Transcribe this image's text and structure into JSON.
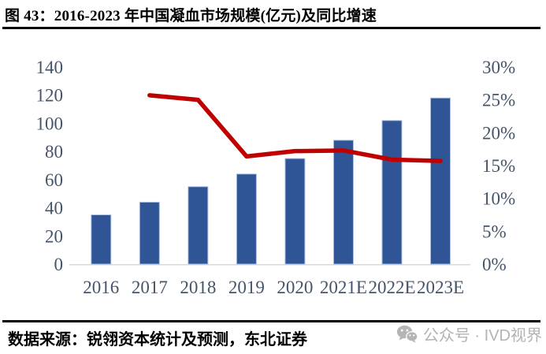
{
  "header": {
    "title": "图 43：2016-2023 年中国凝血市场规模(亿元)及同比增速"
  },
  "footer": {
    "source": "数据来源：锐翎资本统计及预测，东北证券",
    "watermark_text": "公众号 · IVD视界"
  },
  "chart_data": {
    "type": "bar+line combo",
    "title": "2016-2023 年中国凝血市场规模(亿元)及同比增速",
    "categories": [
      "2016",
      "2017",
      "2018",
      "2019",
      "2020",
      "2021E",
      "2022E",
      "2023E"
    ],
    "series": [
      {
        "name": "市场规模(亿元)",
        "type": "bar",
        "axis": "left",
        "values": [
          35,
          44,
          55,
          64,
          75,
          88,
          102,
          118
        ]
      },
      {
        "name": "同比增速",
        "type": "line",
        "axis": "right",
        "values": [
          null,
          25.7,
          25.0,
          16.4,
          17.2,
          17.3,
          15.9,
          15.7
        ]
      }
    ],
    "left_axis": {
      "min": 0,
      "max": 140,
      "step": 20,
      "ticks": [
        "0",
        "20",
        "40",
        "60",
        "80",
        "100",
        "120",
        "140"
      ]
    },
    "right_axis": {
      "min": 0,
      "max": 30,
      "step": 5,
      "ticks": [
        "0%",
        "5%",
        "10%",
        "15%",
        "20%",
        "25%",
        "30%"
      ]
    },
    "grid": false,
    "legend": false,
    "colors": {
      "bar_fill": "#2F5597",
      "bar_border": "#A9C0E4",
      "line": "#C00000",
      "axis_text": "#44546A",
      "axis_line": "#D9D9D9"
    }
  }
}
